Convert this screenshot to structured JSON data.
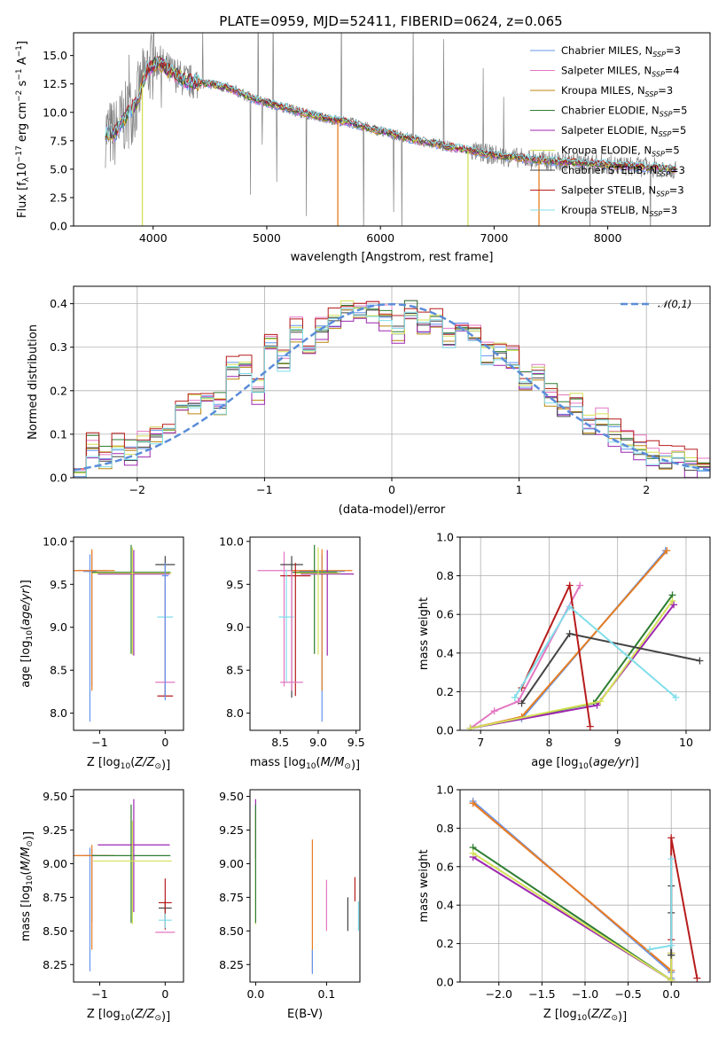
{
  "figure": {
    "title": "PLATE=0959, MJD=52411, FIBERID=0624, z=0.065"
  },
  "models": [
    {
      "name": "Chabrier MILES",
      "nssp": "3",
      "color": "#6495ED"
    },
    {
      "name": "Salpeter MILES",
      "nssp": "4",
      "color": "#E377C2"
    },
    {
      "name": "Kroupa MILES",
      "nssp": "3",
      "color": "#B8860B"
    },
    {
      "name": "Chabrier ELODIE",
      "nssp": "5",
      "color": "#2E7D32"
    },
    {
      "name": "Salpeter ELODIE",
      "nssp": "5",
      "color": "#9C27B0"
    },
    {
      "name": "Kroupa ELODIE",
      "nssp": "5",
      "color": "#D4E157"
    },
    {
      "name": "Chabrier STELIB",
      "nssp": "3",
      "color": "#444444"
    },
    {
      "name": "Salpeter STELIB",
      "nssp": "3",
      "color": "#B71C1C"
    },
    {
      "name": "Kroupa STELIB",
      "nssp": "3",
      "color": "#80DEEA"
    }
  ],
  "chart_data": [
    {
      "id": "spectrum",
      "type": "line",
      "title": "PLATE=0959, MJD=52411, FIBERID=0624, z=0.065",
      "xlabel": "wavelength [Angstrom, rest frame]",
      "ylabel": "Flux [f_λ 10^-17 erg cm^-2 s^-1 A^-1]",
      "xlim": [
        3300,
        8900
      ],
      "ylim": [
        0,
        17
      ],
      "xticks": [
        4000,
        5000,
        6000,
        7000,
        8000
      ],
      "yticks": [
        0.0,
        2.5,
        5.0,
        7.5,
        10.0,
        12.5,
        15.0
      ],
      "legend": "upper right",
      "observed_color": "#808080",
      "continuum": {
        "x": [
          3580,
          3650,
          3750,
          3850,
          3950,
          4050,
          4150,
          4300,
          4500,
          4700,
          4900,
          5100,
          5300,
          5500,
          5700,
          5900,
          6100,
          6300,
          6500,
          6700,
          6900,
          7100,
          7300,
          7500,
          7700,
          7900,
          8100,
          8300,
          8500,
          8600
        ],
        "y": [
          8.3,
          8.0,
          9.5,
          10.8,
          13.8,
          14.4,
          13.6,
          12.7,
          12.5,
          12.0,
          11.1,
          10.6,
          10.0,
          9.5,
          9.2,
          8.6,
          8.1,
          7.6,
          7.2,
          6.8,
          6.4,
          6.1,
          5.9,
          5.7,
          5.6,
          5.5,
          5.3,
          5.2,
          5.1,
          5.0
        ]
      }
    },
    {
      "id": "residuals",
      "type": "step",
      "xlabel": "(data-model)/error",
      "ylabel": "Normed distribution",
      "xlim": [
        -2.5,
        2.5
      ],
      "ylim": [
        0,
        0.44
      ],
      "xticks": [
        -2,
        -1,
        0,
        1,
        2
      ],
      "yticks": [
        0.0,
        0.1,
        0.2,
        0.3,
        0.4
      ],
      "gaussian_label": "𝒩(0,1)",
      "gaussian_color": "#5B8DD9",
      "bin_edges": [
        -2.5,
        -2.4,
        -2.3,
        -2.2,
        -2.1,
        -2.0,
        -1.9,
        -1.8,
        -1.7,
        -1.6,
        -1.5,
        -1.4,
        -1.3,
        -1.2,
        -1.1,
        -1.0,
        -0.9,
        -0.8,
        -0.7,
        -0.6,
        -0.5,
        -0.4,
        -0.3,
        -0.2,
        -0.1,
        0.0,
        0.1,
        0.2,
        0.3,
        0.4,
        0.5,
        0.6,
        0.7,
        0.8,
        0.9,
        1.0,
        1.1,
        1.2,
        1.3,
        1.4,
        1.5,
        1.6,
        1.7,
        1.8,
        1.9,
        2.0,
        2.1,
        2.2,
        2.3,
        2.4,
        2.5
      ],
      "histogram": [
        0.02,
        0.07,
        0.05,
        0.07,
        0.06,
        0.08,
        0.1,
        0.11,
        0.16,
        0.17,
        0.18,
        0.17,
        0.25,
        0.26,
        0.2,
        0.31,
        0.27,
        0.34,
        0.29,
        0.34,
        0.36,
        0.39,
        0.38,
        0.38,
        0.37,
        0.34,
        0.38,
        0.35,
        0.37,
        0.32,
        0.34,
        0.32,
        0.28,
        0.29,
        0.27,
        0.22,
        0.24,
        0.19,
        0.16,
        0.17,
        0.12,
        0.13,
        0.1,
        0.08,
        0.07,
        0.05,
        0.04,
        0.05,
        0.03,
        0.03
      ],
      "series_offsets": [
        0.0,
        0.015,
        -0.012,
        0.01,
        -0.015,
        0.008,
        -0.008,
        0.018,
        -0.01
      ]
    },
    {
      "id": "age-vs-Z",
      "type": "errorbar",
      "xlabel": "Z [log10(Z/Z⊙)]",
      "ylabel": "age [log10(age/yr)]",
      "xlim": [
        -1.4,
        0.28
      ],
      "ylim": [
        7.8,
        10.05
      ],
      "xticks": [
        -1,
        0
      ],
      "yticks": [
        8.0,
        8.5,
        9.0,
        9.5,
        10.0
      ],
      "points": [
        {
          "series": 0,
          "x": -1.15,
          "y": 9.65,
          "xerr": 0.1,
          "yerr_lo": 1.75,
          "yerr_hi": 0.2
        },
        {
          "series": 1,
          "x": -1.12,
          "y": 9.66,
          "xerr": 0.25,
          "yerr_lo": 1.35,
          "yerr_hi": 0.22
        },
        {
          "series": 2,
          "x": -1.12,
          "y": 9.66,
          "xerr": 0.35,
          "yerr_lo": 1.4,
          "yerr_hi": 0.25
        },
        {
          "series": 3,
          "x": -0.52,
          "y": 9.64,
          "xerr": 0.6,
          "yerr_lo": 0.95,
          "yerr_hi": 0.32
        },
        {
          "series": 4,
          "x": -0.48,
          "y": 9.62,
          "xerr": 0.55,
          "yerr_lo": 0.95,
          "yerr_hi": 0.28
        },
        {
          "series": 5,
          "x": -0.5,
          "y": 9.63,
          "xerr": 0.6,
          "yerr_lo": 0.95,
          "yerr_hi": 0.3
        },
        {
          "series": 6,
          "x": 0.0,
          "y": 9.73,
          "xerr": 0.15,
          "yerr_lo": 1.55,
          "yerr_hi": 0.1
        },
        {
          "series": 7,
          "x": 0.0,
          "y": 8.2,
          "xerr": 0.12,
          "yerr_lo": 0.0,
          "yerr_hi": 1.45
        },
        {
          "series": 8,
          "x": 0.0,
          "y": 9.12,
          "xerr": 0.12,
          "yerr_lo": 0.75,
          "yerr_hi": 0.55
        },
        {
          "series": 1,
          "x": 0.0,
          "y": 8.36,
          "xerr": 0.15,
          "yerr_lo": 0.1,
          "yerr_hi": 1.3
        },
        {
          "series": 0,
          "x": 0.0,
          "y": 9.6,
          "xerr": 0.05,
          "yerr_lo": 1.45,
          "yerr_hi": 0.15
        }
      ]
    },
    {
      "id": "age-vs-mass",
      "type": "errorbar",
      "xlabel": "mass [log10(M/M⊙)]",
      "ylabel": "",
      "xlim": [
        8.1,
        9.55
      ],
      "ylim": [
        7.8,
        10.05
      ],
      "xticks": [
        8.5,
        9.0,
        9.5
      ],
      "yticks": [
        8.0,
        8.5,
        9.0,
        9.5,
        10.0
      ],
      "points": [
        {
          "series": 0,
          "x": 9.05,
          "y": 9.65,
          "xerr": 0.3,
          "yerr_lo": 1.75,
          "yerr_hi": 0.2
        },
        {
          "series": 1,
          "x": 8.55,
          "y": 9.66,
          "xerr": 0.35,
          "yerr_lo": 1.35,
          "yerr_hi": 0.22
        },
        {
          "series": 2,
          "x": 9.05,
          "y": 9.66,
          "xerr": 0.4,
          "yerr_lo": 1.4,
          "yerr_hi": 0.25
        },
        {
          "series": 3,
          "x": 8.95,
          "y": 9.64,
          "xerr": 0.3,
          "yerr_lo": 0.95,
          "yerr_hi": 0.32
        },
        {
          "series": 4,
          "x": 9.12,
          "y": 9.62,
          "xerr": 0.35,
          "yerr_lo": 0.95,
          "yerr_hi": 0.28
        },
        {
          "series": 5,
          "x": 9.0,
          "y": 9.63,
          "xerr": 0.3,
          "yerr_lo": 0.95,
          "yerr_hi": 0.3
        },
        {
          "series": 6,
          "x": 8.65,
          "y": 9.73,
          "xerr": 0.15,
          "yerr_lo": 1.55,
          "yerr_hi": 0.1
        },
        {
          "series": 7,
          "x": 8.7,
          "y": 9.6,
          "xerr": 0.2,
          "yerr_lo": 1.4,
          "yerr_hi": 0.15
        },
        {
          "series": 8,
          "x": 8.58,
          "y": 9.12,
          "xerr": 0.1,
          "yerr_lo": 0.75,
          "yerr_hi": 0.55
        },
        {
          "series": 1,
          "x": 8.65,
          "y": 8.36,
          "xerr": 0.15,
          "yerr_lo": 0.1,
          "yerr_hi": 1.3
        }
      ]
    },
    {
      "id": "weight-vs-age",
      "type": "line",
      "xlabel": "age [log10(age/yr)]",
      "ylabel": "mass weight",
      "xlim": [
        6.7,
        10.35
      ],
      "ylim": [
        0,
        1.0
      ],
      "xticks": [
        7,
        8,
        9,
        10
      ],
      "yticks": [
        0.0,
        0.2,
        0.4,
        0.6,
        0.8,
        1.0
      ],
      "series": [
        {
          "series": 0,
          "x": [
            6.85,
            7.6,
            9.7
          ],
          "y": [
            0.01,
            0.06,
            0.93
          ]
        },
        {
          "series": 1,
          "x": [
            6.85,
            7.2,
            7.55,
            8.45
          ],
          "y": [
            0.01,
            0.1,
            0.15,
            0.75
          ]
        },
        {
          "series": 2,
          "x": [
            6.85,
            7.6,
            9.72
          ],
          "y": [
            0.01,
            0.07,
            0.93
          ]
        },
        {
          "series": 3,
          "x": [
            6.85,
            8.65,
            9.8
          ],
          "y": [
            0.01,
            0.14,
            0.7
          ]
        },
        {
          "series": 4,
          "x": [
            6.85,
            8.7,
            9.82
          ],
          "y": [
            0.01,
            0.13,
            0.65
          ]
        },
        {
          "series": 5,
          "x": [
            6.85,
            8.75,
            9.8
          ],
          "y": [
            0.01,
            0.15,
            0.67
          ]
        },
        {
          "series": 6,
          "x": [
            7.6,
            8.3,
            10.2
          ],
          "y": [
            0.14,
            0.5,
            0.36
          ]
        },
        {
          "series": 7,
          "x": [
            7.6,
            8.3,
            8.6
          ],
          "y": [
            0.22,
            0.75,
            0.02
          ]
        },
        {
          "series": 8,
          "x": [
            7.5,
            8.3,
            9.85
          ],
          "y": [
            0.17,
            0.64,
            0.17
          ]
        }
      ]
    },
    {
      "id": "mass-vs-Z",
      "type": "errorbar",
      "xlabel": "Z [log10(Z/Z⊙)]",
      "ylabel": "mass [log10(M/M⊙)]",
      "xlim": [
        -1.4,
        0.28
      ],
      "ylim": [
        8.12,
        9.55
      ],
      "xticks": [
        -1,
        0
      ],
      "yticks": [
        8.25,
        8.5,
        8.75,
        9.0,
        9.25,
        9.5
      ],
      "points": [
        {
          "series": 0,
          "x": -1.15,
          "y": 9.06,
          "xerr": 0.1,
          "yerr_lo": 0.86,
          "yerr_hi": 0.06
        },
        {
          "series": 1,
          "x": -1.12,
          "y": 9.06,
          "xerr": 0.25,
          "yerr_lo": 0.5,
          "yerr_hi": 0.05
        },
        {
          "series": 2,
          "x": -1.12,
          "y": 9.06,
          "xerr": 0.35,
          "yerr_lo": 0.7,
          "yerr_hi": 0.08
        },
        {
          "series": 3,
          "x": -0.52,
          "y": 9.06,
          "xerr": 0.6,
          "yerr_lo": 0.5,
          "yerr_hi": 0.38
        },
        {
          "series": 4,
          "x": -0.48,
          "y": 9.14,
          "xerr": 0.55,
          "yerr_lo": 0.5,
          "yerr_hi": 0.34
        },
        {
          "series": 5,
          "x": -0.5,
          "y": 9.02,
          "xerr": 0.6,
          "yerr_lo": 0.47,
          "yerr_hi": 0.3
        },
        {
          "series": 6,
          "x": 0.0,
          "y": 8.67,
          "xerr": 0.1,
          "yerr_lo": 0.1,
          "yerr_hi": 0.05
        },
        {
          "series": 7,
          "x": 0.0,
          "y": 8.71,
          "xerr": 0.1,
          "yerr_lo": 0.2,
          "yerr_hi": 0.18
        },
        {
          "series": 8,
          "x": 0.0,
          "y": 8.58,
          "xerr": 0.1,
          "yerr_lo": 0.06,
          "yerr_hi": 0.05
        },
        {
          "series": 1,
          "x": 0.0,
          "y": 8.49,
          "xerr": 0.15,
          "yerr_lo": 0.0,
          "yerr_hi": 0.0
        }
      ]
    },
    {
      "id": "mass-vs-EBV",
      "type": "errorbar",
      "xlabel": "E(B-V)",
      "ylabel": "",
      "xlim": [
        -0.008,
        0.147
      ],
      "ylim": [
        8.12,
        9.55
      ],
      "xticks": [
        0.0,
        0.1
      ],
      "yticks": [
        8.25,
        8.5,
        8.75,
        9.0,
        9.25,
        9.5
      ],
      "points": [
        {
          "series": 4,
          "x": 0.0,
          "y": 9.14,
          "xerr": 0.0,
          "yerr_lo": 0.1,
          "yerr_hi": 0.34
        },
        {
          "series": 5,
          "x": 0.0,
          "y": 9.02,
          "xerr": 0.0,
          "yerr_lo": 0.47,
          "yerr_hi": 0.36
        },
        {
          "series": 3,
          "x": 0.0,
          "y": 9.06,
          "xerr": 0.0,
          "yerr_lo": 0.5,
          "yerr_hi": 0.38
        },
        {
          "series": 2,
          "x": 0.08,
          "y": 8.6,
          "xerr": 0.0,
          "yerr_lo": 0.4,
          "yerr_hi": 0.58
        },
        {
          "series": 0,
          "x": 0.08,
          "y": 8.3,
          "xerr": 0.0,
          "yerr_lo": 0.12,
          "yerr_hi": 0.06
        },
        {
          "series": 1,
          "x": 0.1,
          "y": 8.6,
          "xerr": 0.0,
          "yerr_lo": 0.1,
          "yerr_hi": 0.28
        },
        {
          "series": 6,
          "x": 0.13,
          "y": 8.6,
          "xerr": 0.0,
          "yerr_lo": 0.1,
          "yerr_hi": 0.15
        },
        {
          "series": 7,
          "x": 0.14,
          "y": 8.8,
          "xerr": 0.0,
          "yerr_lo": 0.08,
          "yerr_hi": 0.1
        },
        {
          "series": 8,
          "x": 0.145,
          "y": 8.6,
          "xerr": 0.0,
          "yerr_lo": 0.1,
          "yerr_hi": 0.12
        }
      ]
    },
    {
      "id": "weight-vs-Z",
      "type": "line",
      "xlabel": "Z [log10(Z/Z⊙)]",
      "ylabel": "mass weight",
      "xlim": [
        -2.45,
        0.45
      ],
      "ylim": [
        0,
        1.0
      ],
      "xticks": [
        -2.0,
        -1.5,
        -1.0,
        -0.5,
        0.0
      ],
      "yticks": [
        0.0,
        0.2,
        0.4,
        0.6,
        0.8,
        1.0
      ],
      "series": [
        {
          "series": 0,
          "x": [
            -2.3,
            0.0,
            0.0
          ],
          "y": [
            0.94,
            0.05,
            0.02
          ]
        },
        {
          "series": 1,
          "x": [
            -2.3,
            0.0
          ],
          "y": [
            0.93,
            0.06
          ]
        },
        {
          "series": 2,
          "x": [
            -2.3,
            0.0,
            0.0
          ],
          "y": [
            0.93,
            0.06,
            0.01
          ]
        },
        {
          "series": 3,
          "x": [
            -2.3,
            0.0,
            0.0
          ],
          "y": [
            0.7,
            0.01,
            0.14
          ]
        },
        {
          "series": 4,
          "x": [
            -2.3,
            0.0,
            0.0
          ],
          "y": [
            0.65,
            0.01,
            0.15
          ]
        },
        {
          "series": 5,
          "x": [
            -2.3,
            0.0,
            0.0
          ],
          "y": [
            0.67,
            0.01,
            0.15
          ]
        },
        {
          "series": 6,
          "x": [
            0.0,
            0.0,
            0.0
          ],
          "y": [
            0.14,
            0.5,
            0.36
          ]
        },
        {
          "series": 7,
          "x": [
            0.0,
            0.0,
            0.3
          ],
          "y": [
            0.22,
            0.75,
            0.02
          ]
        },
        {
          "series": 8,
          "x": [
            -0.25,
            0.0,
            0.0
          ],
          "y": [
            0.17,
            0.19,
            0.64
          ]
        }
      ]
    }
  ]
}
